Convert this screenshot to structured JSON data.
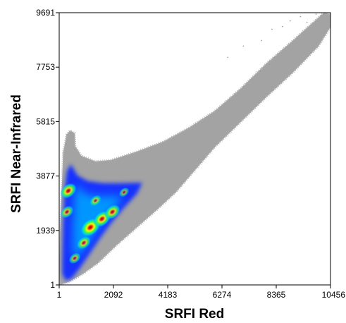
{
  "chart_data": {
    "type": "heatmap",
    "subtype": "density-scatter",
    "title": "",
    "xlabel": "SRFI Red",
    "ylabel": "SRFI Near-Infrared",
    "xlim": [
      1,
      10456
    ],
    "ylim": [
      1,
      9691
    ],
    "x_ticks": [
      1,
      2092,
      4183,
      6274,
      8365,
      10456
    ],
    "y_ticks": [
      1,
      1939,
      3877,
      5815,
      7753,
      9691
    ],
    "x_tick_labels": [
      "1",
      "2092",
      "4183",
      "6274",
      "8365",
      "10456"
    ],
    "y_tick_labels": [
      "1",
      "1939",
      "3877",
      "5815",
      "7753",
      "9691"
    ],
    "grid": false,
    "legend": "none",
    "background_points_color": "#a0a0a0",
    "density_colormap": [
      "#1a20ff",
      "#0090ff",
      "#00e0e0",
      "#40ff40",
      "#ffff00",
      "#ff2000",
      "#8b0000"
    ],
    "sparse_cloud_outline": [
      [
        20,
        920
      ],
      [
        30,
        1880
      ],
      [
        100,
        3400
      ],
      [
        150,
        4700
      ],
      [
        280,
        5350
      ],
      [
        420,
        5500
      ],
      [
        600,
        5400
      ],
      [
        620,
        4950
      ],
      [
        850,
        4600
      ],
      [
        1400,
        4400
      ],
      [
        2000,
        4450
      ],
      [
        3000,
        4750
      ],
      [
        4000,
        5100
      ],
      [
        5000,
        5600
      ],
      [
        6000,
        6200
      ],
      [
        7000,
        7000
      ],
      [
        8000,
        7900
      ],
      [
        9000,
        8700
      ],
      [
        9600,
        9200
      ],
      [
        10200,
        9691
      ],
      [
        10456,
        9640
      ],
      [
        10456,
        9180
      ],
      [
        10000,
        8500
      ],
      [
        9000,
        7550
      ],
      [
        8000,
        6700
      ],
      [
        7000,
        5800
      ],
      [
        6000,
        4900
      ],
      [
        5200,
        4050
      ],
      [
        4500,
        3300
      ],
      [
        3800,
        2700
      ],
      [
        3000,
        2050
      ],
      [
        2200,
        1400
      ],
      [
        1500,
        780
      ],
      [
        900,
        380
      ],
      [
        400,
        120
      ],
      [
        100,
        20
      ],
      [
        20,
        20
      ]
    ],
    "dense_core_outline": [
      [
        120,
        800
      ],
      [
        150,
        2100
      ],
      [
        200,
        3300
      ],
      [
        300,
        4050
      ],
      [
        450,
        4300
      ],
      [
        700,
        3900
      ],
      [
        1100,
        3700
      ],
      [
        1700,
        3620
      ],
      [
        2400,
        3620
      ],
      [
        3200,
        3640
      ],
      [
        3000,
        3250
      ],
      [
        2500,
        2750
      ],
      [
        2000,
        2200
      ],
      [
        1600,
        1700
      ],
      [
        1200,
        1150
      ],
      [
        800,
        600
      ],
      [
        500,
        250
      ],
      [
        250,
        150
      ],
      [
        120,
        400
      ]
    ],
    "density_hotspots": [
      {
        "x": 1200,
        "y": 2050,
        "level": 0.95
      },
      {
        "x": 1650,
        "y": 2350,
        "level": 0.8
      },
      {
        "x": 2050,
        "y": 2600,
        "level": 0.7
      },
      {
        "x": 350,
        "y": 3350,
        "level": 0.75
      },
      {
        "x": 300,
        "y": 2600,
        "level": 0.55
      },
      {
        "x": 950,
        "y": 1500,
        "level": 0.6
      },
      {
        "x": 1400,
        "y": 3000,
        "level": 0.45
      },
      {
        "x": 2500,
        "y": 3300,
        "level": 0.35
      },
      {
        "x": 600,
        "y": 950,
        "level": 0.45
      }
    ],
    "far_sparse_points": [
      [
        8900,
        9400
      ],
      [
        9300,
        9550
      ],
      [
        9900,
        9640
      ],
      [
        8600,
        9200
      ],
      [
        7800,
        8700
      ],
      [
        8200,
        9100
      ],
      [
        6500,
        8100
      ],
      [
        7100,
        8500
      ],
      [
        9550,
        9350
      ],
      [
        10100,
        9600
      ]
    ]
  }
}
